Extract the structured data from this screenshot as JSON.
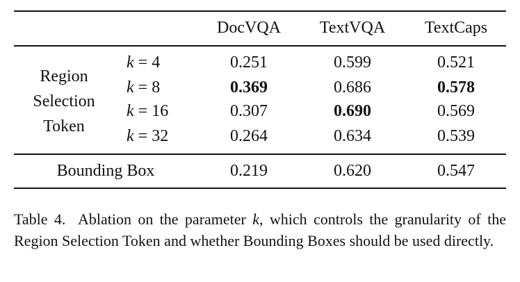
{
  "table": {
    "columns": [
      "DocVQA",
      "TextVQA",
      "TextCaps"
    ],
    "group_label": "Region Selection Token",
    "rows": [
      {
        "param": "k",
        "setting": "= 4",
        "cells": [
          "0.251",
          "0.599",
          "0.521"
        ],
        "bold": [
          false,
          false,
          false
        ]
      },
      {
        "param": "k",
        "setting": "= 8",
        "cells": [
          "0.369",
          "0.686",
          "0.578"
        ],
        "bold": [
          true,
          false,
          true
        ]
      },
      {
        "param": "k",
        "setting": "= 16",
        "cells": [
          "0.307",
          "0.690",
          "0.569"
        ],
        "bold": [
          false,
          true,
          false
        ]
      },
      {
        "param": "k",
        "setting": "= 32",
        "cells": [
          "0.264",
          "0.634",
          "0.539"
        ],
        "bold": [
          false,
          false,
          false
        ]
      }
    ],
    "footer_row": {
      "label": "Bounding Box",
      "cells": [
        "0.219",
        "0.620",
        "0.547"
      ],
      "bold": [
        false,
        false,
        false
      ]
    }
  },
  "caption": {
    "label": "Table 4.",
    "before": "Ablation on the parameter ",
    "param": "k",
    "after": ", which controls the granularity of the Region Selection Token and whether Bounding Boxes should be used directly."
  }
}
